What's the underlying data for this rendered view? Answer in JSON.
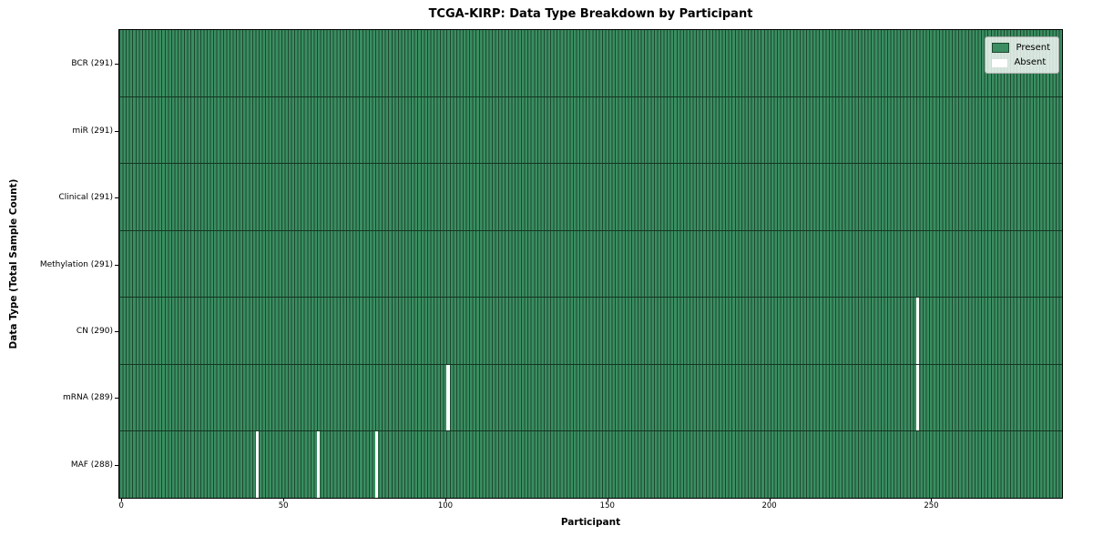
{
  "chart_data": {
    "type": "heatmap",
    "title": "TCGA-KIRP: Data Type Breakdown by Participant",
    "xlabel": "Participant",
    "ylabel": "Data Type (Total Sample Count)",
    "n_participants": 291,
    "xlim": [
      -0.5,
      290.5
    ],
    "x_ticks": [
      0,
      50,
      100,
      150,
      200,
      250
    ],
    "grid": false,
    "rows": [
      {
        "data_type": "BCR",
        "label": "BCR (291)",
        "present_count": 291,
        "missing_participants": []
      },
      {
        "data_type": "miR",
        "label": "miR (291)",
        "present_count": 291,
        "missing_participants": []
      },
      {
        "data_type": "Clinical",
        "label": "Clinical (291)",
        "present_count": 291,
        "missing_participants": []
      },
      {
        "data_type": "Methylation",
        "label": "Methylation (291)",
        "present_count": 291,
        "missing_participants": []
      },
      {
        "data_type": "CN",
        "label": "CN (290)",
        "present_count": 290,
        "missing_participants": [
          246
        ]
      },
      {
        "data_type": "mRNA",
        "label": "mRNA (289)",
        "present_count": 289,
        "missing_participants": [
          101,
          246
        ]
      },
      {
        "data_type": "MAF",
        "label": "MAF (288)",
        "present_count": 288,
        "missing_participants": [
          42,
          61,
          79
        ]
      }
    ],
    "legend": {
      "position": "upper right",
      "entries": [
        {
          "label": "Present",
          "color": "#3a8e61"
        },
        {
          "label": "Absent",
          "color": "#ffffff"
        }
      ]
    },
    "colors": {
      "present": "#3a8e61",
      "absent": "#ffffff",
      "bar_edge": "#1d4730",
      "row_separator": "#143522",
      "spine": "#000000"
    }
  }
}
